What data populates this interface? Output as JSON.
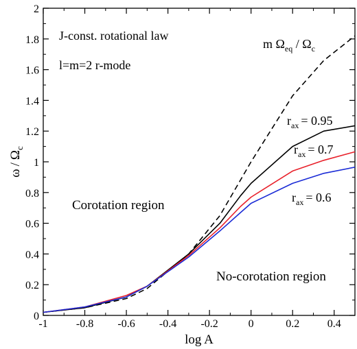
{
  "chart_data": {
    "type": "line",
    "xlabel": "log A",
    "ylabel_parts": {
      "omega": "ω",
      "slash": "/",
      "Omega": "Ω",
      "sub": "c"
    },
    "xlim": [
      -1,
      0.5
    ],
    "ylim": [
      0,
      2
    ],
    "xticks": [
      "-1",
      "-0.8",
      "-0.6",
      "-0.4",
      "-0.2",
      "0",
      "0.2",
      "0.4"
    ],
    "xtick_values": [
      -1,
      -0.8,
      -0.6,
      -0.4,
      -0.2,
      0,
      0.2,
      0.4
    ],
    "yticks": [
      "0",
      "0.2",
      "0.4",
      "0.6",
      "0.8",
      "1",
      "1.2",
      "1.4",
      "1.6",
      "1.8",
      "2"
    ],
    "ytick_values": [
      0,
      0.2,
      0.4,
      0.6,
      0.8,
      1,
      1.2,
      1.4,
      1.6,
      1.8,
      2
    ],
    "grid": false,
    "annotations": {
      "law": "J-const. rotational law",
      "mode": "l=m=2 r-mode",
      "corotation": "Corotation region",
      "no_corotation": "No-corotation region"
    },
    "series": [
      {
        "label_main": "m Ω",
        "label_sub": "eq",
        "label_slash": " / Ω",
        "label_sub2": "c",
        "color": "#000000",
        "dashed": true,
        "x": [
          -1,
          -0.8,
          -0.6,
          -0.5,
          -0.3,
          -0.15,
          0,
          0.2,
          0.35,
          0.5
        ],
        "y": [
          0.02,
          0.05,
          0.11,
          0.175,
          0.4,
          0.65,
          1.0,
          1.43,
          1.66,
          1.82
        ]
      },
      {
        "label_main": "r",
        "label_sub": "ax",
        "label_value": "= 0.95",
        "color": "#000000",
        "dashed": false,
        "x": [
          -1,
          -0.8,
          -0.6,
          -0.5,
          -0.3,
          -0.15,
          -0.05,
          0,
          0.2,
          0.35,
          0.5
        ],
        "y": [
          0.02,
          0.05,
          0.12,
          0.19,
          0.4,
          0.6,
          0.78,
          0.86,
          1.1,
          1.2,
          1.235
        ]
      },
      {
        "label_main": "r",
        "label_sub": "ax",
        "label_value": "= 0.7",
        "color": "#e8202a",
        "dashed": false,
        "x": [
          -1,
          -0.8,
          -0.6,
          -0.5,
          -0.3,
          -0.15,
          -0.05,
          0,
          0.2,
          0.35,
          0.5
        ],
        "y": [
          0.02,
          0.055,
          0.13,
          0.19,
          0.39,
          0.57,
          0.71,
          0.77,
          0.94,
          1.01,
          1.065
        ]
      },
      {
        "label_main": "r",
        "label_sub": "ax",
        "label_value": "= 0.6",
        "color": "#1a2bd6",
        "dashed": false,
        "x": [
          -1,
          -0.8,
          -0.6,
          -0.5,
          -0.3,
          -0.15,
          -0.05,
          0,
          0.2,
          0.35,
          0.5
        ],
        "y": [
          0.02,
          0.055,
          0.12,
          0.19,
          0.38,
          0.55,
          0.67,
          0.73,
          0.86,
          0.925,
          0.965
        ]
      }
    ]
  }
}
